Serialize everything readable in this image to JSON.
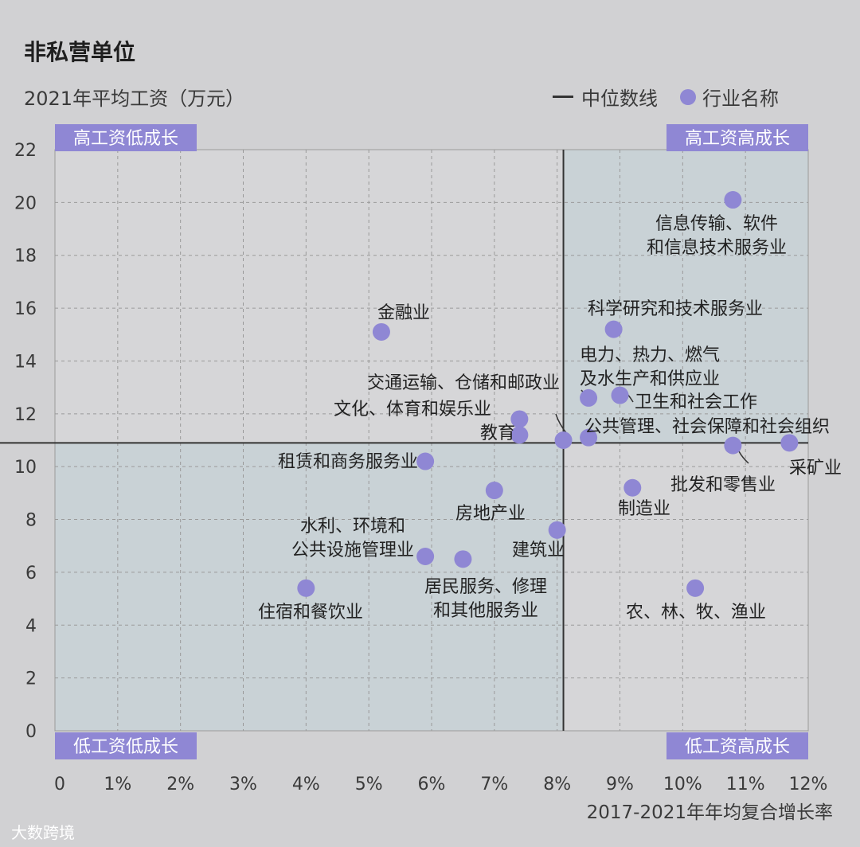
{
  "header": {
    "title": "非私营单位",
    "subtitle": "2021年平均工资（万元）"
  },
  "legend": {
    "median_label": "中位数线",
    "point_label": "行业名称"
  },
  "footer": {
    "watermark": "大数跨境"
  },
  "colors": {
    "point": "#8f87d4",
    "quadrant_label_bg": "#8f87d4",
    "quadrant_shade": "#c9d2d6",
    "median_line": "#333333"
  },
  "chart_data": {
    "type": "scatter",
    "xlabel": "2017-2021年年均复合增长率",
    "ylabel": "2021年平均工资（万元）",
    "xlim": [
      0,
      12
    ],
    "ylim": [
      0,
      22
    ],
    "x_unit": "%",
    "x_ticks": [
      0,
      1,
      2,
      3,
      4,
      5,
      6,
      7,
      8,
      9,
      10,
      11,
      12
    ],
    "x_tick_labels": [
      "0",
      "1%",
      "2%",
      "3%",
      "4%",
      "5%",
      "6%",
      "7%",
      "8%",
      "9%",
      "10%",
      "11%",
      "12%"
    ],
    "y_ticks": [
      0,
      2,
      4,
      6,
      8,
      10,
      12,
      14,
      16,
      18,
      20,
      22
    ],
    "grid": true,
    "median": {
      "x": 8.1,
      "y": 10.9
    },
    "quadrants": {
      "top_left": "高工资低成长",
      "top_right": "高工资高成长",
      "bottom_left": "低工资低成长",
      "bottom_right": "低工资高成长"
    },
    "points": [
      {
        "name": "信息传输、软件\n和信息技术服务业",
        "x": 10.8,
        "y": 20.1
      },
      {
        "name": "科学研究和技术服务业",
        "x": 8.9,
        "y": 15.2
      },
      {
        "name": "金融业",
        "x": 5.2,
        "y": 15.1
      },
      {
        "name": "电力、热力、燃气\n及水生产和供应业",
        "x": 8.5,
        "y": 12.6
      },
      {
        "name": "卫生和社会工作",
        "x": 9.0,
        "y": 12.7
      },
      {
        "name": "交通运输、仓储和邮政业",
        "x": 8.1,
        "y": 11.0
      },
      {
        "name": "文化、体育和娱乐业",
        "x": 7.4,
        "y": 11.8
      },
      {
        "name": "教育",
        "x": 7.4,
        "y": 11.2
      },
      {
        "name": "公共管理、社会保障和社会组织",
        "x": 8.5,
        "y": 11.1
      },
      {
        "name": "采矿业",
        "x": 11.7,
        "y": 10.9
      },
      {
        "name": "批发和零售业",
        "x": 10.8,
        "y": 10.8
      },
      {
        "name": "租赁和商务服务业",
        "x": 5.9,
        "y": 10.2
      },
      {
        "name": "制造业",
        "x": 9.2,
        "y": 9.2
      },
      {
        "name": "房地产业",
        "x": 7.0,
        "y": 9.1
      },
      {
        "name": "建筑业",
        "x": 8.0,
        "y": 7.6
      },
      {
        "name": "水利、环境和\n公共设施管理业",
        "x": 5.9,
        "y": 6.6
      },
      {
        "name": "居民服务、修理\n和其他服务业",
        "x": 6.5,
        "y": 6.5
      },
      {
        "name": "住宿和餐饮业",
        "x": 4.0,
        "y": 5.4
      },
      {
        "name": "农、林、牧、渔业",
        "x": 10.2,
        "y": 5.4
      }
    ]
  }
}
